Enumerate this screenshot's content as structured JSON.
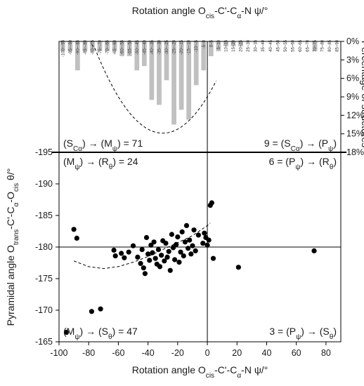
{
  "chart_data": [
    {
      "type": "bar",
      "axis_title": {
        "prefix": "Rotation angle O",
        "sub1": "cis",
        "middle": "-C'-C",
        "sub2": "α",
        "suffix": "-N ψ/°"
      },
      "right_axis_title": "Percentage of structures",
      "right_ticks": [
        "0%",
        "3%",
        "6%",
        "9%",
        "12%",
        "15%",
        "18%"
      ],
      "ylim": [
        0,
        18
      ],
      "bar_color": "#c0c0c0",
      "categories": [
        "-100~-95",
        "-95~-90",
        "-90~-85",
        "-85~-80",
        "-80~-75",
        "-75~-70",
        "-70~-65",
        "-65~-60",
        "-60~-55",
        "-55~-50",
        "-50~-45",
        "-45~-40",
        "-40~-35",
        "-35~-30",
        "-30~-25",
        "-25~-20",
        "-20~-15",
        "-15~-10",
        "-10~-5",
        "-5~0",
        "0~5",
        "5~10",
        "10~15",
        "15~20",
        "20~25",
        "25~30",
        "30~35",
        "35~40",
        "40~45",
        "45~50",
        "50~55",
        "55~60",
        "60~65",
        "65~70",
        "70~75",
        "75~80",
        "80~85",
        "85~90"
      ],
      "values": [
        1.6,
        1.6,
        4.7,
        1.6,
        1.6,
        1.6,
        1.6,
        1.6,
        2.4,
        2.4,
        4.7,
        4.0,
        9.5,
        10.3,
        6.3,
        13.5,
        11.1,
        12.7,
        7.1,
        4.7,
        2.4,
        1.6,
        0.8,
        0.8,
        0.8,
        0,
        0,
        0,
        0,
        0,
        0,
        0,
        0,
        0,
        1.6,
        0,
        0,
        0
      ]
    },
    {
      "type": "scatter",
      "xlabel": {
        "prefix": "Rotation angle O",
        "sub1": "cis",
        "middle": "-C'-C",
        "sub2": "α",
        "suffix": "-N ψ/°"
      },
      "ylabel": {
        "p1": "Pyramidal angle O",
        "s1": "trans",
        "p2": "-C'-C",
        "s2": "α",
        "p3": "-O",
        "s3": "cis",
        "p4": " θ/°"
      },
      "xlim": [
        -100,
        90
      ],
      "ylim": [
        -195,
        -165
      ],
      "x_ticks": [
        -100,
        -80,
        -60,
        -40,
        -20,
        0,
        20,
        40,
        60,
        80
      ],
      "y_ticks": [
        -195,
        -190,
        -185,
        -180,
        -175,
        -170,
        -165
      ],
      "point_color": "#000000",
      "points": [
        [
          -95,
          -166.5
        ],
        [
          -78,
          -169.8
        ],
        [
          -72,
          -170.2
        ],
        [
          -90,
          -182.8
        ],
        [
          -88,
          -181.4
        ],
        [
          -63,
          -179.5
        ],
        [
          -62,
          -178.6
        ],
        [
          -58,
          -179.0
        ],
        [
          -56,
          -178.3
        ],
        [
          -53,
          -179.2
        ],
        [
          -50,
          -180.2
        ],
        [
          -47,
          -178.4
        ],
        [
          -45,
          -177.4
        ],
        [
          -44,
          -179.6
        ],
        [
          -43,
          -176.7
        ],
        [
          -42,
          -175.8
        ],
        [
          -41,
          -181.5
        ],
        [
          -40,
          -178.9
        ],
        [
          -39,
          -177.9
        ],
        [
          -38,
          -180.3
        ],
        [
          -37,
          -179.1
        ],
        [
          -36,
          -180.8
        ],
        [
          -35,
          -178.2
        ],
        [
          -34,
          -177.3
        ],
        [
          -33,
          -179.6
        ],
        [
          -32,
          -176.9
        ],
        [
          -31,
          -178.7
        ],
        [
          -30,
          -181.0
        ],
        [
          -29,
          -177.8
        ],
        [
          -28,
          -180.6
        ],
        [
          -27,
          -178.4
        ],
        [
          -26,
          -179.3
        ],
        [
          -25,
          -176.3
        ],
        [
          -24,
          -182.0
        ],
        [
          -23,
          -179.9
        ],
        [
          -22,
          -178.0
        ],
        [
          -21,
          -180.4
        ],
        [
          -20,
          -181.6
        ],
        [
          -19,
          -177.6
        ],
        [
          -18,
          -179.2
        ],
        [
          -17,
          -182.4
        ],
        [
          -16,
          -178.6
        ],
        [
          -15,
          -180.8
        ],
        [
          -14,
          -183.4
        ],
        [
          -13,
          -179.8
        ],
        [
          -12,
          -181.1
        ],
        [
          -11,
          -178.9
        ],
        [
          -10,
          -180.2
        ],
        [
          -9,
          -182.7
        ],
        [
          -8,
          -179.4
        ],
        [
          -6,
          -181.9
        ],
        [
          -3,
          -180.6
        ],
        [
          -2,
          -182.2
        ],
        [
          -1,
          -181.5
        ],
        [
          0,
          -180.3
        ],
        [
          1,
          -181.1
        ],
        [
          2,
          -186.6
        ],
        [
          3,
          -187.0
        ],
        [
          4,
          -178.2
        ],
        [
          21,
          -176.8
        ],
        [
          72,
          -179.4
        ]
      ],
      "trend_curve": [
        [
          -90,
          -177.8
        ],
        [
          -80,
          -176.9
        ],
        [
          -70,
          -176.6
        ],
        [
          -60,
          -176.9
        ],
        [
          -50,
          -177.6
        ],
        [
          -40,
          -178.5
        ],
        [
          -30,
          -179.6
        ],
        [
          -20,
          -180.7
        ],
        [
          -10,
          -181.8
        ],
        [
          0,
          -183.4
        ],
        [
          2,
          -183.8
        ]
      ],
      "quadrants": {
        "top_left": {
          "p1": "(S",
          "s1": "Cα",
          "p2": ") → (M",
          "s2": "ψ",
          "p3": ") = 71"
        },
        "top_right": {
          "p1": "9 = (S",
          "s1": "Cα",
          "p2": ") → (P",
          "s2": "ψ",
          "p3": ")"
        },
        "mid_left": {
          "p1": "(M",
          "s1": "ψ",
          "p2": ") → (R",
          "s2": "θ",
          "p3": ") = 24"
        },
        "mid_right": {
          "p1": "6 = (P",
          "s1": "ψ",
          "p2": ") → (R",
          "s2": "θ",
          "p3": ")"
        },
        "bottom_left": {
          "p1": "(M",
          "s1": "ψ",
          "p2": ") → (S",
          "s2": "θ",
          "p3": ") = 47"
        },
        "bottom_right": {
          "p1": "3 = (P",
          "s1": "ψ",
          "p2": ") → (S",
          "s2": "θ",
          "p3": ")"
        }
      }
    }
  ]
}
